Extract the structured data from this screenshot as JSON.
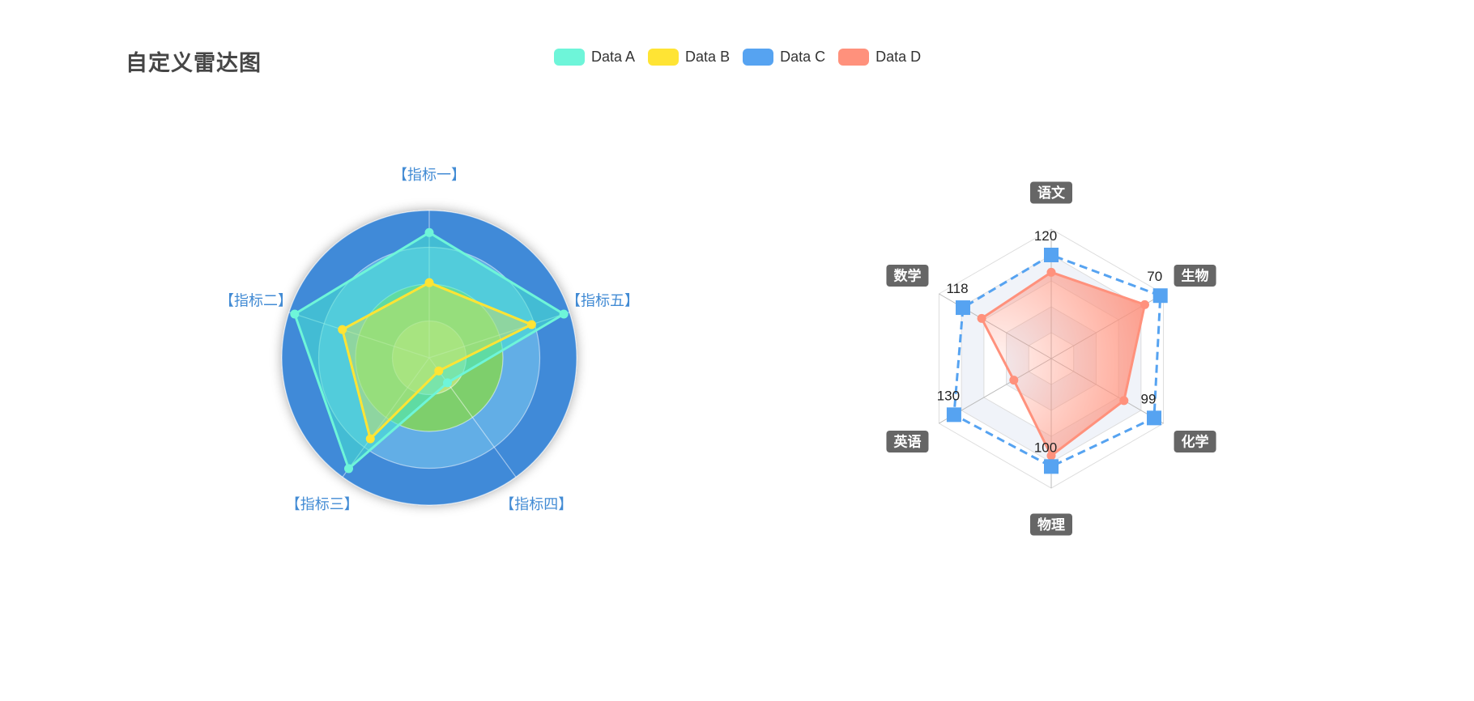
{
  "title": "自定义雷达图",
  "legend": [
    {
      "name": "Data A",
      "color": "#6ef5d9"
    },
    {
      "name": "Data B",
      "color": "#ffe434"
    },
    {
      "name": "Data C",
      "color": "#56a3f1"
    },
    {
      "name": "Data D",
      "color": "#ff917c"
    }
  ],
  "chart_data": [
    {
      "type": "radar",
      "indicators": [
        {
          "name": "【指标一】",
          "max": 100
        },
        {
          "name": "【指标二】",
          "max": 100
        },
        {
          "name": "【指标三】",
          "max": 100
        },
        {
          "name": "【指标四】",
          "max": 100
        },
        {
          "name": "【指标五】",
          "max": 100
        }
      ],
      "shape": "circle",
      "split_number": 4,
      "split_area_colors": [
        "#b8e27a",
        "#7ecf6c",
        "#62aee6",
        "#3f8ad8"
      ],
      "series": [
        {
          "name": "Data A",
          "color": "#6ef5d9",
          "values": [
            85,
            96,
            93,
            21,
            96
          ]
        },
        {
          "name": "Data B",
          "color": "#ffe434",
          "values": [
            51,
            62,
            68,
            11,
            73
          ]
        }
      ]
    },
    {
      "type": "radar",
      "indicators": [
        {
          "name": "语文",
          "max": 150
        },
        {
          "name": "数学",
          "max": 150
        },
        {
          "name": "英语",
          "max": 150
        },
        {
          "name": "物理",
          "max": 120
        },
        {
          "name": "化学",
          "max": 108
        },
        {
          "name": "生物",
          "max": 72
        }
      ],
      "shape": "polygon",
      "split_number": 5,
      "series": [
        {
          "name": "Data C",
          "color": "#56a3f1",
          "line_style": "dashed",
          "symbol": "rect",
          "show_labels": true,
          "values": [
            120,
            118,
            130,
            100,
            99,
            70
          ]
        },
        {
          "name": "Data D",
          "color": "#ff917c",
          "area_gradient": true,
          "values": [
            100,
            93,
            50,
            90,
            70,
            60
          ]
        }
      ]
    }
  ]
}
